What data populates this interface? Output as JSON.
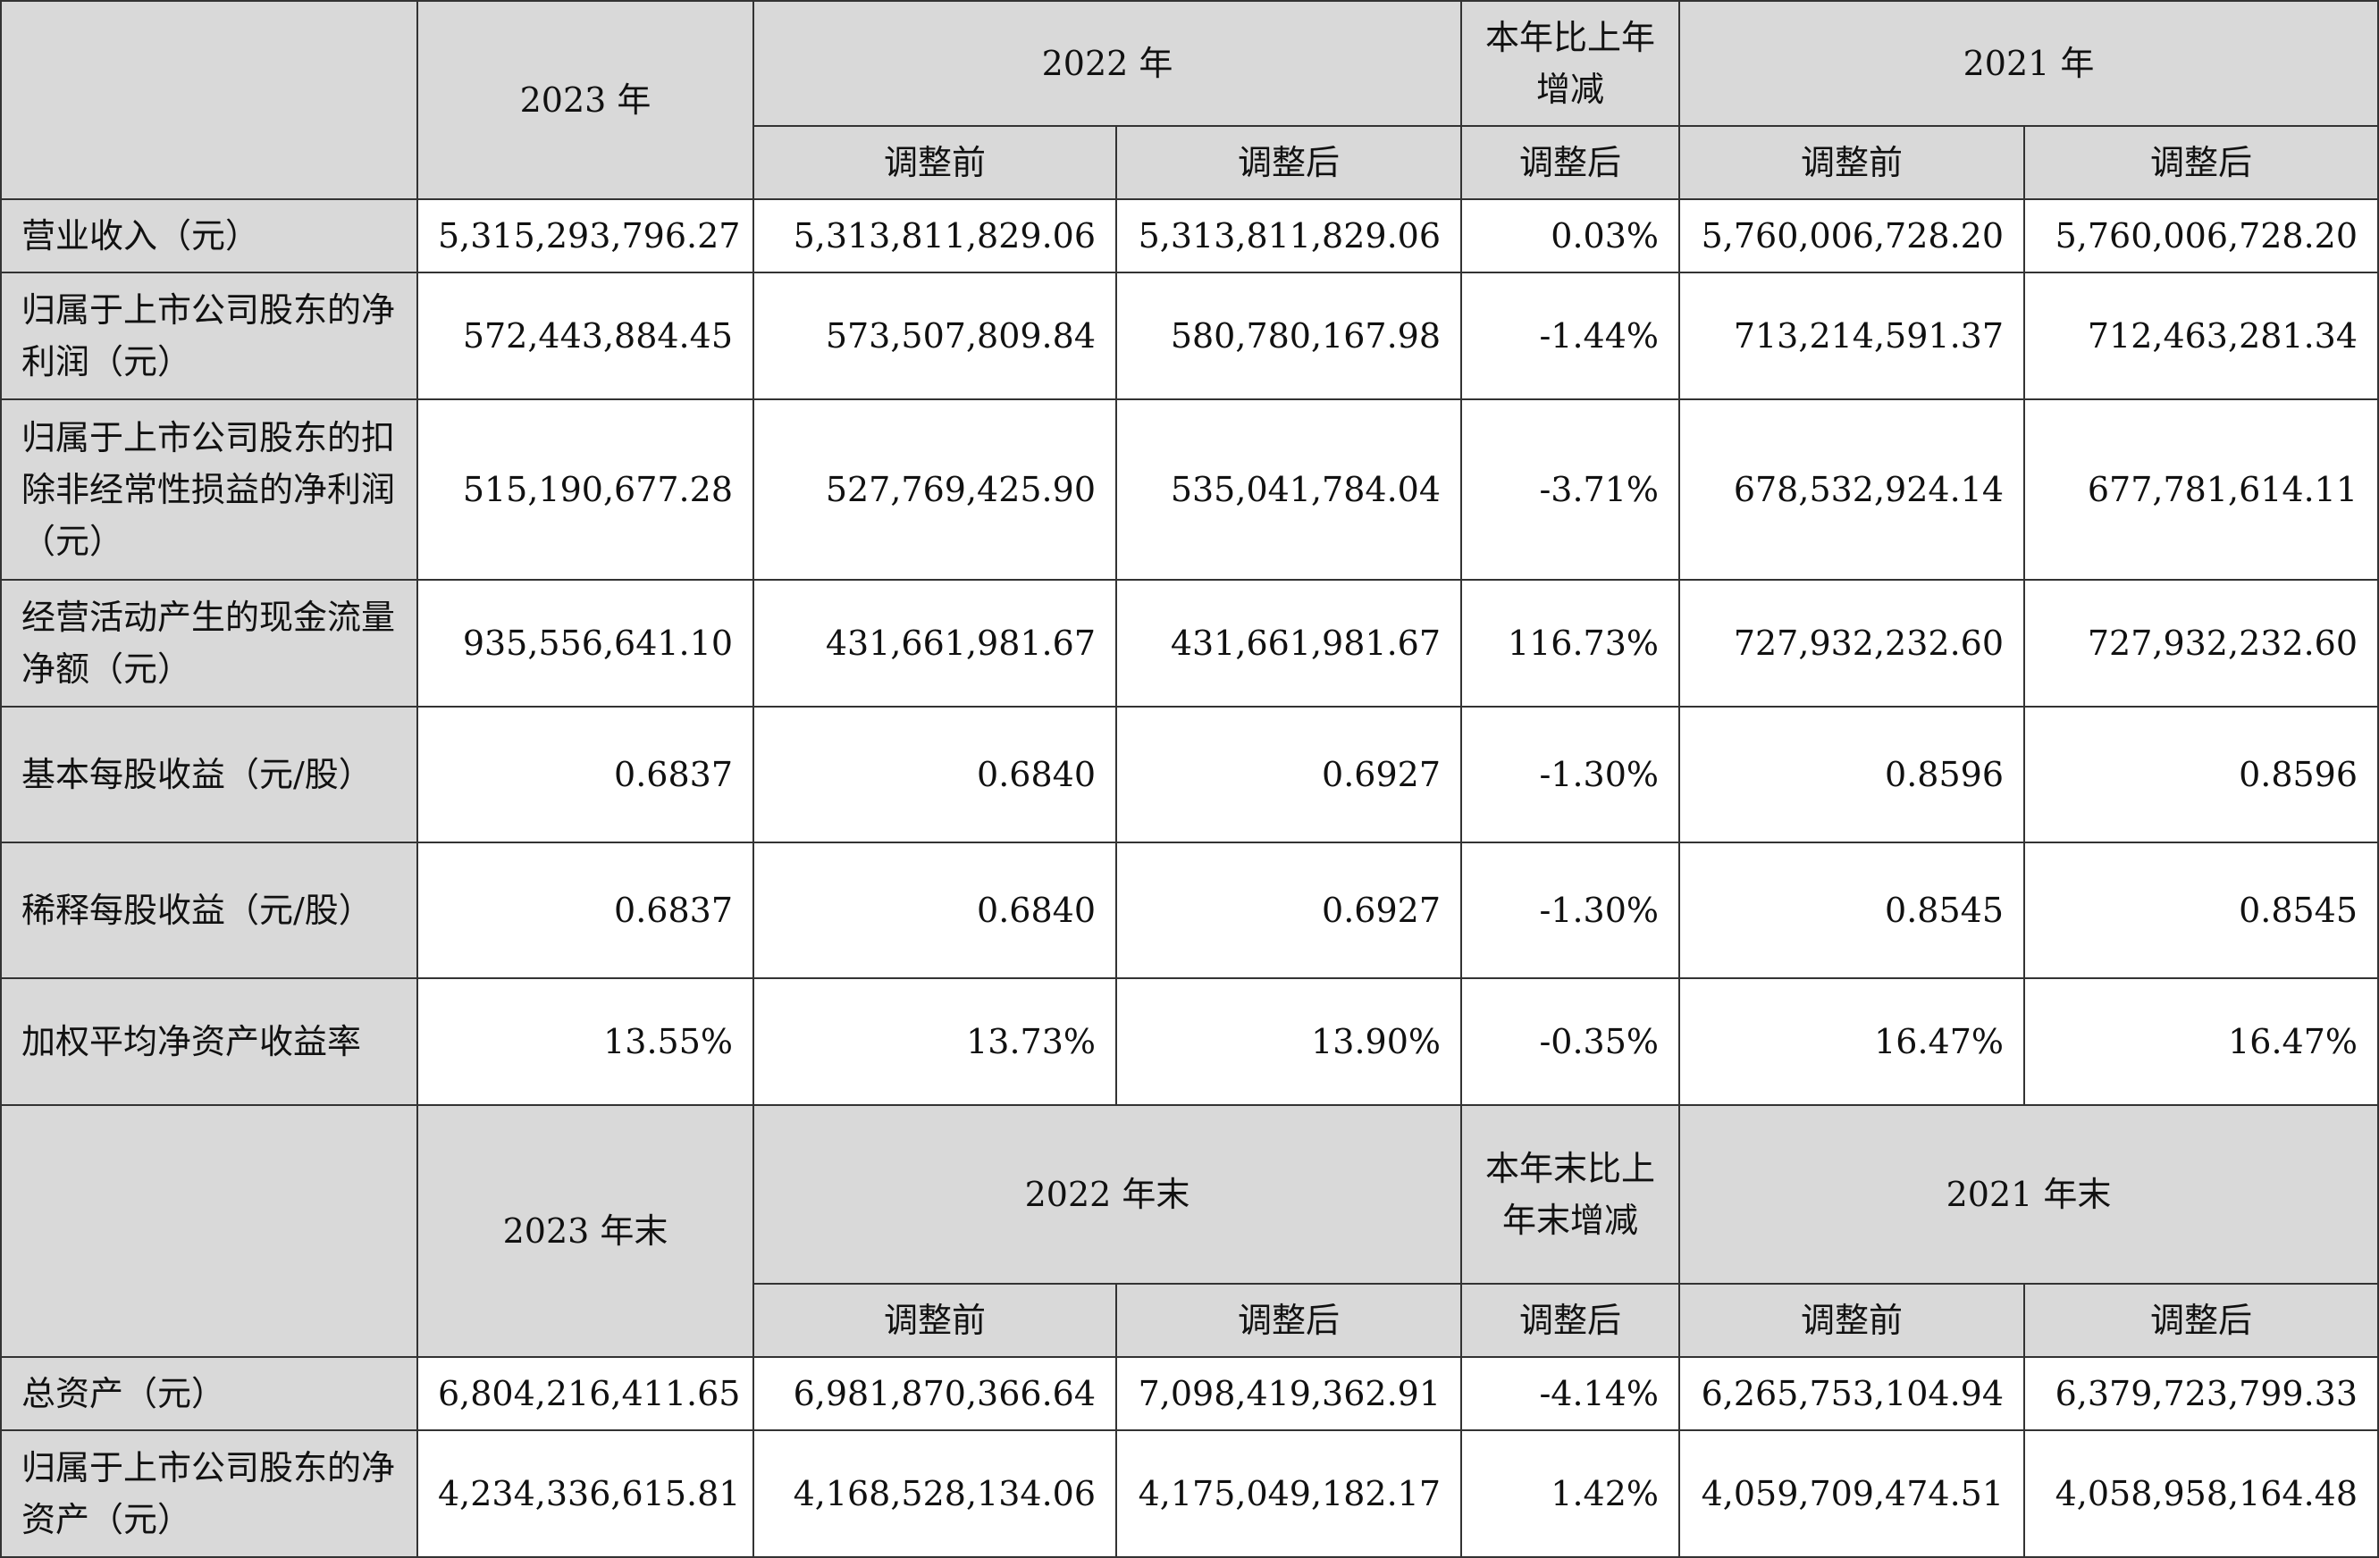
{
  "top_header": {
    "corner": "",
    "year_2023": "2023 年",
    "year_2022": "2022 年",
    "change": "本年比上年增减",
    "year_2021": "2021 年",
    "sub_before_2022": "调整前",
    "sub_after_2022": "调整后",
    "sub_change": "调整后",
    "sub_before_2021": "调整前",
    "sub_after_2021": "调整后"
  },
  "rows": [
    {
      "label": "营业收入（元）",
      "v2023": "5,315,293,796.27",
      "v2022_before": "5,313,811,829.06",
      "v2022_after": "5,313,811,829.06",
      "change": "0.03%",
      "v2021_before": "5,760,006,728.20",
      "v2021_after": "5,760,006,728.20"
    },
    {
      "label": "归属于上市公司股东的净利润（元）",
      "v2023": "572,443,884.45",
      "v2022_before": "573,507,809.84",
      "v2022_after": "580,780,167.98",
      "change": "-1.44%",
      "v2021_before": "713,214,591.37",
      "v2021_after": "712,463,281.34"
    },
    {
      "label": "归属于上市公司股东的扣除非经常性损益的净利润（元）",
      "v2023": "515,190,677.28",
      "v2022_before": "527,769,425.90",
      "v2022_after": "535,041,784.04",
      "change": "-3.71%",
      "v2021_before": "678,532,924.14",
      "v2021_after": "677,781,614.11"
    },
    {
      "label": "经营活动产生的现金流量净额（元）",
      "v2023": "935,556,641.10",
      "v2022_before": "431,661,981.67",
      "v2022_after": "431,661,981.67",
      "change": "116.73%",
      "v2021_before": "727,932,232.60",
      "v2021_after": "727,932,232.60"
    },
    {
      "label": "基本每股收益（元/股）",
      "v2023": "0.6837",
      "v2022_before": "0.6840",
      "v2022_after": "0.6927",
      "change": "-1.30%",
      "v2021_before": "0.8596",
      "v2021_after": "0.8596"
    },
    {
      "label": "稀释每股收益（元/股）",
      "v2023": "0.6837",
      "v2022_before": "0.6840",
      "v2022_after": "0.6927",
      "change": "-1.30%",
      "v2021_before": "0.8545",
      "v2021_after": "0.8545"
    },
    {
      "label": "加权平均净资产收益率",
      "v2023": "13.55%",
      "v2022_before": "13.73%",
      "v2022_after": "13.90%",
      "change": "-0.35%",
      "v2021_before": "16.47%",
      "v2021_after": "16.47%"
    }
  ],
  "bottom_header": {
    "corner": "",
    "year_2023": "2023 年末",
    "year_2022": "2022 年末",
    "change": "本年末比上年末增减",
    "year_2021": "2021 年末",
    "sub_before_2022": "调整前",
    "sub_after_2022": "调整后",
    "sub_change": "调整后",
    "sub_before_2021": "调整前",
    "sub_after_2021": "调整后"
  },
  "bottom_rows": [
    {
      "label": "总资产（元）",
      "v2023": "6,804,216,411.65",
      "v2022_before": "6,981,870,366.64",
      "v2022_after": "7,098,419,362.91",
      "change": "-4.14%",
      "v2021_before": "6,265,753,104.94",
      "v2021_after": "6,379,723,799.33"
    },
    {
      "label": "归属于上市公司股东的净资产（元）",
      "v2023": "4,234,336,615.81",
      "v2022_before": "4,168,528,134.06",
      "v2022_after": "4,175,049,182.17",
      "change": "1.42%",
      "v2021_before": "4,059,709,474.51",
      "v2021_after": "4,058,958,164.48"
    }
  ]
}
